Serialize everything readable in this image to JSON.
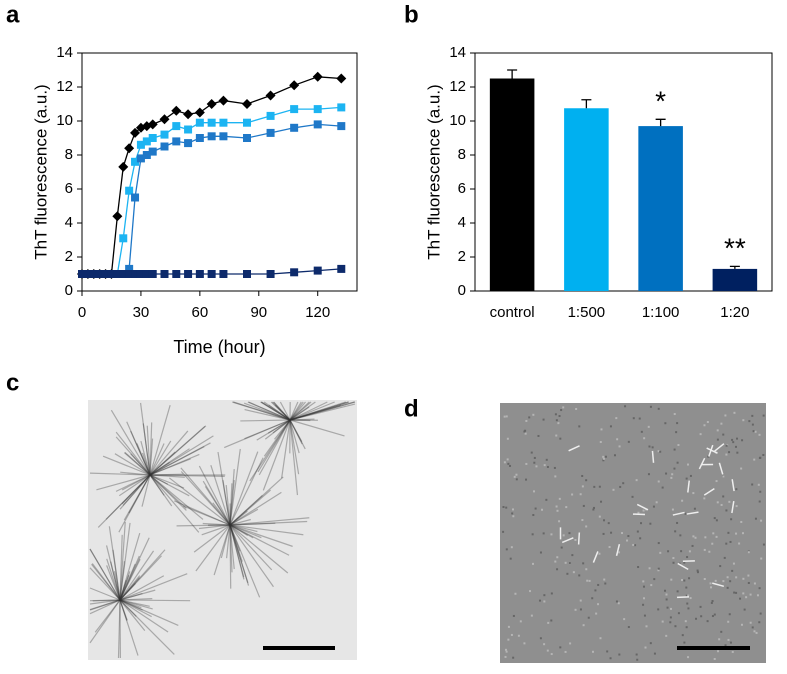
{
  "panel_labels": [
    "a",
    "b",
    "c",
    "d"
  ],
  "chart_data": [
    {
      "type": "line",
      "xlabel": "Time (hour)",
      "ylabel": "ThT fluorescence (a.u.)",
      "x": [
        0,
        3,
        6,
        9,
        12,
        15,
        18,
        21,
        24,
        27,
        30,
        33,
        36,
        42,
        48,
        54,
        60,
        66,
        72,
        84,
        96,
        108,
        120,
        132
      ],
      "xlim": [
        0,
        140
      ],
      "xticks": [
        0,
        30,
        60,
        90,
        120
      ],
      "ylim": [
        0,
        14
      ],
      "yticks": [
        0,
        2,
        4,
        6,
        8,
        10,
        12,
        14
      ],
      "series": [
        {
          "color": "#000000",
          "marker": "diamond",
          "values": [
            1,
            1,
            1,
            1,
            1,
            1,
            4.4,
            7.3,
            8.4,
            9.3,
            9.6,
            9.7,
            9.8,
            10.1,
            10.6,
            10.4,
            10.5,
            11.0,
            11.2,
            11.0,
            11.5,
            12.1,
            12.6,
            12.5
          ]
        },
        {
          "color": "#1cb4f2",
          "marker": "square",
          "values": [
            1,
            1,
            1,
            1,
            1,
            1,
            1,
            3.1,
            5.9,
            7.6,
            8.6,
            8.8,
            9.0,
            9.2,
            9.7,
            9.5,
            9.9,
            9.9,
            9.9,
            9.9,
            10.3,
            10.7,
            10.7,
            10.8
          ]
        },
        {
          "color": "#1f78c8",
          "marker": "square",
          "values": [
            1,
            1,
            1,
            1,
            1,
            1,
            1,
            1,
            1.3,
            5.5,
            7.8,
            8.0,
            8.2,
            8.5,
            8.8,
            8.7,
            9.0,
            9.1,
            9.1,
            9.0,
            9.3,
            9.6,
            9.8,
            9.7
          ]
        },
        {
          "color": "#0d2a6b",
          "marker": "square",
          "values": [
            1,
            1,
            1,
            1,
            1,
            1,
            1,
            1,
            1,
            1,
            1,
            1,
            1,
            1,
            1,
            1,
            1,
            1,
            1,
            1,
            1,
            1.1,
            1.2,
            1.3
          ]
        }
      ]
    },
    {
      "type": "bar",
      "ylabel": "ThT fluorescence (a.u.)",
      "categories": [
        "control",
        "1:500",
        "1:100",
        "1:20"
      ],
      "values": [
        12.5,
        10.75,
        9.7,
        1.3
      ],
      "errors": [
        0.5,
        0.5,
        0.4,
        0.15
      ],
      "colors": [
        "#000000",
        "#00b0f0",
        "#0070c0",
        "#002060"
      ],
      "ylim": [
        0,
        14
      ],
      "yticks": [
        0,
        2,
        4,
        6,
        8,
        10,
        12,
        14
      ],
      "annotations": [
        {
          "text": "*",
          "category": "1:100"
        },
        {
          "text": "**",
          "category": "1:20"
        }
      ]
    }
  ]
}
